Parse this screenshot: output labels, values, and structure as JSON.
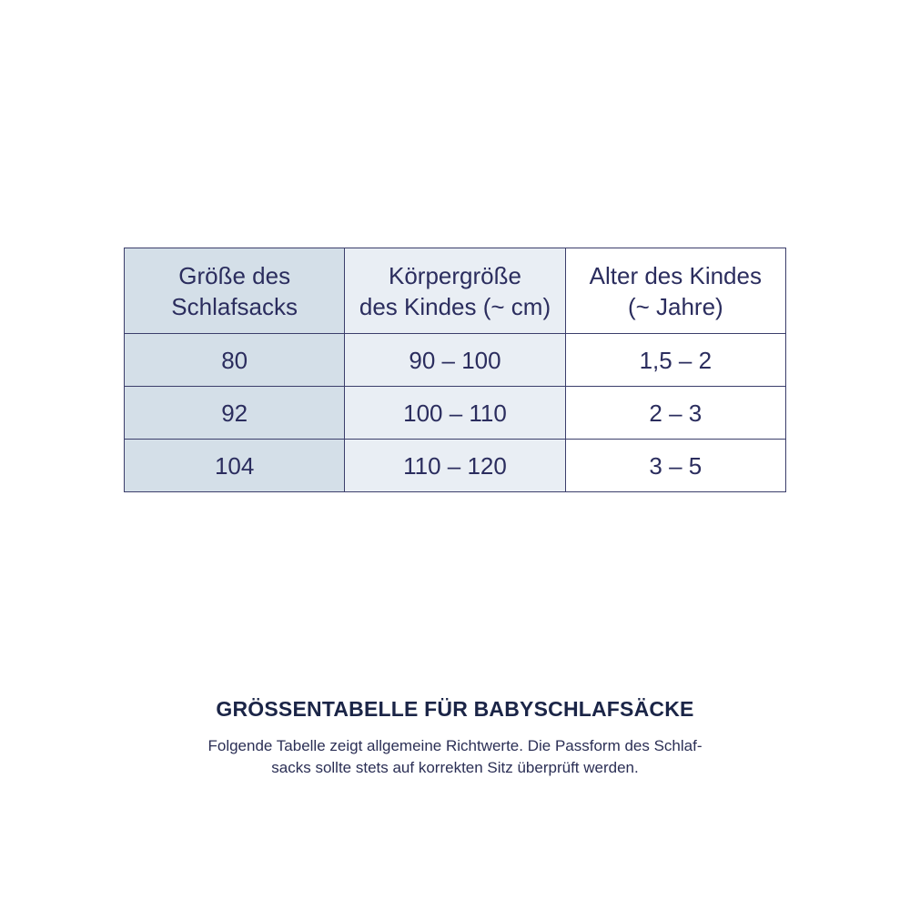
{
  "table": {
    "headers": [
      [
        "Größe des",
        "Schlafsacks"
      ],
      [
        "Körpergröße",
        "des Kindes (~ cm)"
      ],
      [
        "Alter des Kindes",
        "(~ Jahre)"
      ]
    ],
    "rows": [
      [
        "80",
        "90 – 100",
        "1,5 – 2"
      ],
      [
        "92",
        "100 – 110",
        "2 – 3"
      ],
      [
        "104",
        "110 – 120",
        "3 – 5"
      ]
    ],
    "colors": {
      "col1": "#d4dfe8",
      "col2": "#e9eef4",
      "col3": "#ffffff",
      "border": "#3b3e6b",
      "text": "#2b2d5e"
    }
  },
  "caption": {
    "title": "GRÖSSENTABELLE FÜR BABYSCHLAFSÄCKE",
    "lines": [
      "Folgende Tabelle zeigt allgemeine Richtwerte. Die Passform des Schlaf-",
      "sacks sollte stets auf korrekten Sitz überprüft werden."
    ]
  }
}
